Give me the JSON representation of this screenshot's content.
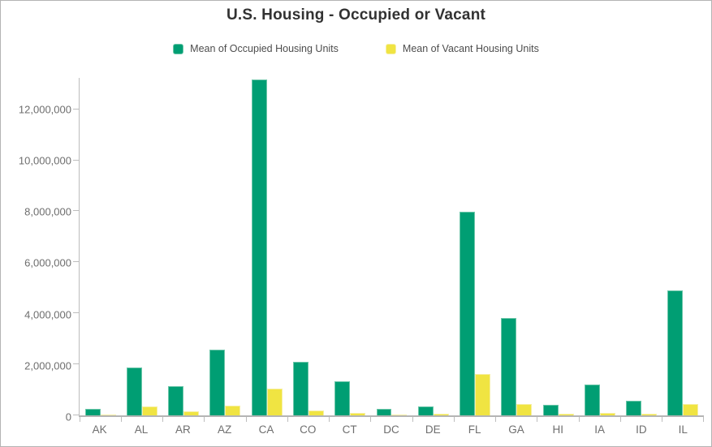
{
  "title": "U.S. Housing - Occupied or Vacant",
  "legend": {
    "items": [
      {
        "label": "Mean of Occupied Housing Units",
        "color": "#009E73",
        "border_color": "#6cc6a9"
      },
      {
        "label": "Mean of Vacant Housing Units",
        "color": "#F0E442",
        "border_color": "#f6efa3"
      }
    ]
  },
  "chart_data": {
    "type": "bar",
    "title": "U.S. Housing - Occupied or Vacant",
    "categories": [
      "AK",
      "AL",
      "AR",
      "AZ",
      "CA",
      "CO",
      "CT",
      "DC",
      "DE",
      "FL",
      "GA",
      "HI",
      "IA",
      "ID",
      "IL"
    ],
    "series": [
      {
        "name": "Mean of Occupied Housing Units",
        "color": "#009E73",
        "border_color": "#6cc6a9",
        "values": [
          240000,
          1870000,
          1140000,
          2590000,
          13170000,
          2090000,
          1330000,
          260000,
          340000,
          7970000,
          3830000,
          420000,
          1200000,
          580000,
          4890000
        ]
      },
      {
        "name": "Mean of Vacant Housing Units",
        "color": "#F0E442",
        "border_color": "#f6efa3",
        "values": [
          40000,
          350000,
          160000,
          370000,
          1060000,
          180000,
          110000,
          30000,
          55000,
          1610000,
          450000,
          70000,
          90000,
          50000,
          460000
        ]
      }
    ],
    "xlabel": "",
    "ylabel": "",
    "ylim": [
      0,
      13230000
    ],
    "y_ticks": [
      0,
      2000000,
      4000000,
      6000000,
      8000000,
      10000000,
      12000000
    ],
    "y_tick_labels": [
      "0",
      "2,000,000",
      "4,000,000",
      "6,000,000",
      "8,000,000",
      "10,000,000",
      "12,000,000"
    ],
    "grid": false,
    "legend_position": "top"
  }
}
